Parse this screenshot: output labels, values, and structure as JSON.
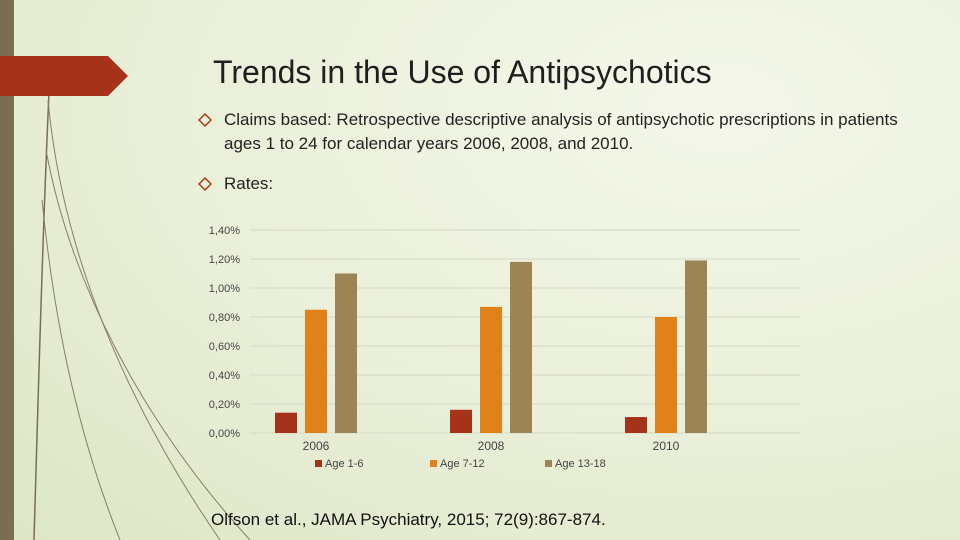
{
  "slide": {
    "title": "Trends in the Use of Antipsychotics",
    "bullets": [
      "Claims based:  Retrospective descriptive analysis of antipsychotic prescriptions in patients ages 1 to 24 for calendar years 2006, 2008, and 2010.",
      "Rates:"
    ],
    "citation": "Olfson et al., JAMA Psychiatry, 2015; 72(9):867-874."
  },
  "colors": {
    "accent_red": "#a5331a",
    "sidebar": "#7a6e52",
    "background": "#e9efd8"
  },
  "chart_data": {
    "type": "bar",
    "categories": [
      "2006",
      "2008",
      "2010"
    ],
    "series": [
      {
        "name": "Age 1-6",
        "values": [
          0.14,
          0.16,
          0.11
        ],
        "color": "#a5331a"
      },
      {
        "name": "Age 7-12",
        "values": [
          0.85,
          0.87,
          0.8
        ],
        "color": "#e08119"
      },
      {
        "name": "Age 13-18",
        "values": [
          1.1,
          1.18,
          1.19
        ],
        "color": "#9c8454"
      }
    ],
    "yticks": [
      "0,00%",
      "0,20%",
      "0,40%",
      "0,60%",
      "0,80%",
      "1,00%",
      "1,20%",
      "1,40%"
    ],
    "ylim": [
      0,
      1.4
    ],
    "unit": "%",
    "grid": true,
    "legend_position": "bottom",
    "title": "",
    "xlabel": "",
    "ylabel": ""
  }
}
